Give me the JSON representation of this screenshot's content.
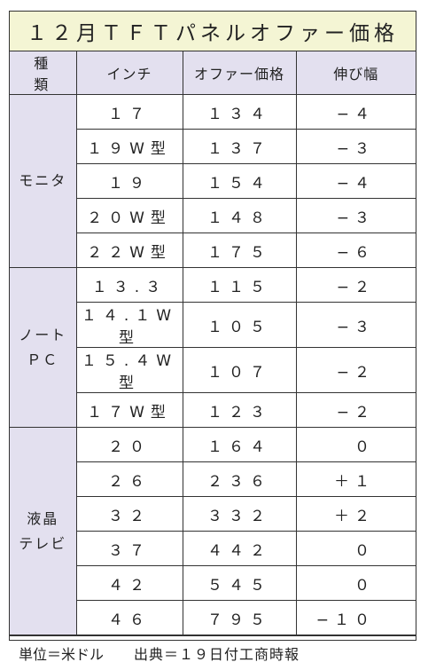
{
  "title": "１２月ＴＦＴパネルオファー価格",
  "headers": {
    "kind": "種類",
    "inch": "インチ",
    "price": "オファー価格",
    "change": "伸び幅"
  },
  "groups": [
    {
      "name_lines": [
        "モニタ"
      ],
      "rows": [
        {
          "inch": "１７",
          "price": "１３４",
          "change": "−４"
        },
        {
          "inch": "１９W型",
          "price": "１３７",
          "change": "−３"
        },
        {
          "inch": "１９",
          "price": "１５４",
          "change": "−４"
        },
        {
          "inch": "２０W型",
          "price": "１４８",
          "change": "−３"
        },
        {
          "inch": "２２W型",
          "price": "１７５",
          "change": "−６"
        }
      ]
    },
    {
      "name_lines": [
        "ノート",
        "ＰＣ"
      ],
      "rows": [
        {
          "inch": "１３.３",
          "price": "１１５",
          "change": "−２"
        },
        {
          "inch": "１４.１W型",
          "price": "１０５",
          "change": "−３"
        },
        {
          "inch": "１５.４W型",
          "price": "１０７",
          "change": "−２"
        },
        {
          "inch": "１７W型",
          "price": "１２３",
          "change": "−２"
        }
      ]
    },
    {
      "name_lines": [
        "液晶",
        "テレビ"
      ],
      "rows": [
        {
          "inch": "２０",
          "price": "１６４",
          "change": "０"
        },
        {
          "inch": "２６",
          "price": "２３６",
          "change": "＋１"
        },
        {
          "inch": "３２",
          "price": "３３２",
          "change": "＋２"
        },
        {
          "inch": "３７",
          "price": "４４２",
          "change": "０"
        },
        {
          "inch": "４２",
          "price": "５４５",
          "change": "０"
        },
        {
          "inch": "４６",
          "price": "７９５",
          "change": "−１０"
        }
      ]
    }
  ],
  "footer": {
    "unit": "単位＝米ドル",
    "source": "出典＝１９日付工商時報"
  },
  "colors": {
    "title_bg": "#f4f5d4",
    "header_bg": "#e3e0ef",
    "border": "#333333"
  }
}
